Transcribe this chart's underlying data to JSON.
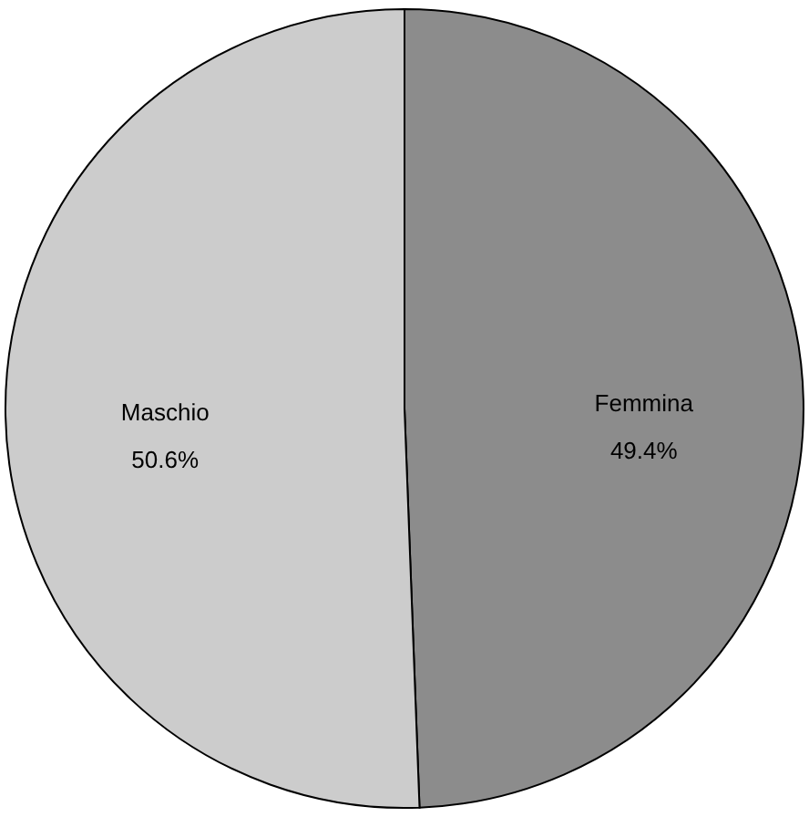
{
  "chart_data": {
    "type": "pie",
    "categories": [
      "Femmina",
      "Maschio"
    ],
    "values": [
      49.4,
      50.6
    ],
    "colors": [
      "#8c8c8c",
      "#cccccc"
    ],
    "value_labels": [
      "49.4%",
      "50.6%"
    ],
    "legend": false
  }
}
